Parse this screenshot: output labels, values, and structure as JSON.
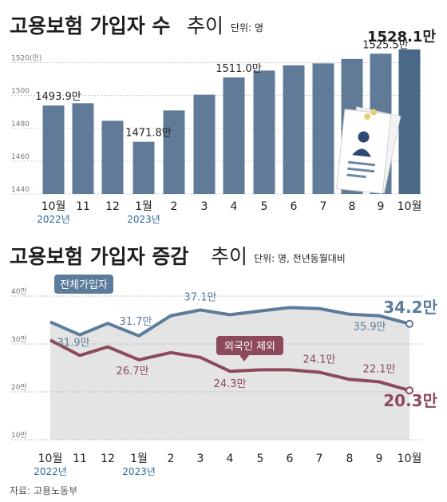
{
  "chart_data": [
    {
      "type": "bar",
      "title": "고용보험 가입자 수",
      "title_suffix": "추이",
      "unit": "단위: 명",
      "ylim": [
        1440,
        1530
      ],
      "y_ticks": [
        "1440",
        "1460",
        "1480",
        "1500",
        "1520(만)"
      ],
      "y_tick_values": [
        1440,
        1460,
        1480,
        1500,
        1520
      ],
      "categories": [
        "10월",
        "11",
        "12",
        "1월",
        "2",
        "3",
        "4",
        "5",
        "6",
        "7",
        "8",
        "9",
        "10월"
      ],
      "year_labels": [
        {
          "index": 0,
          "text": "2022년"
        },
        {
          "index": 3,
          "text": "2023년"
        }
      ],
      "values": [
        1493.9,
        1495.3,
        1484.6,
        1471.8,
        1490.9,
        1500.5,
        1511.0,
        1515.2,
        1518.4,
        1519.6,
        1522.3,
        1525.5,
        1528.1
      ],
      "data_labels": [
        {
          "index": 0,
          "text": "1493.9만"
        },
        {
          "index": 3,
          "text": "1471.8만"
        },
        {
          "index": 6,
          "text": "1511.0만"
        },
        {
          "index": 11,
          "text": "1525.5만"
        },
        {
          "index": 12,
          "text": "1528.1만"
        }
      ],
      "colors": {
        "bar": "#5f7b98",
        "bar_last": "#4a6888",
        "title": "#1d1d1d"
      }
    },
    {
      "type": "line",
      "title": "고용보험 가입자 증감",
      "title_suffix": "추이",
      "unit": "단위: 명, 전년동월대비",
      "ylim": [
        10,
        40
      ],
      "y_ticks": [
        "10만",
        "20만",
        "30만",
        "40만"
      ],
      "y_tick_values": [
        10,
        20,
        30,
        40
      ],
      "categories": [
        "10월",
        "11",
        "12",
        "1월",
        "2",
        "3",
        "4",
        "5",
        "6",
        "7",
        "8",
        "9",
        "10월"
      ],
      "year_labels": [
        {
          "index": 0,
          "text": "2022년"
        },
        {
          "index": 3,
          "text": "2023년"
        }
      ],
      "series": [
        {
          "name": "전체가입자",
          "values": [
            34.6,
            31.9,
            34.3,
            31.7,
            35.9,
            37.1,
            36.1,
            36.9,
            37.6,
            37.4,
            36.2,
            35.9,
            34.2
          ],
          "color": "#5b7c9b",
          "data_labels": [
            {
              "index": 1,
              "text": "31.9만"
            },
            {
              "index": 3,
              "text": "31.7만"
            },
            {
              "index": 5,
              "text": "37.1만"
            },
            {
              "index": 11,
              "text": "35.9만"
            },
            {
              "index": 12,
              "text": "34.2만"
            }
          ]
        },
        {
          "name": "외국인 제외",
          "values": [
            30.8,
            27.6,
            29.4,
            26.7,
            28.2,
            27.2,
            24.3,
            24.6,
            24.6,
            24.1,
            22.6,
            22.1,
            20.3
          ],
          "color": "#8c4a5b",
          "data_labels": [
            {
              "index": 3,
              "text": "26.7만"
            },
            {
              "index": 6,
              "text": "24.3만"
            },
            {
              "index": 9,
              "text": "24.1만"
            },
            {
              "index": 11,
              "text": "22.1만"
            },
            {
              "index": 12,
              "text": "20.3만"
            }
          ]
        }
      ],
      "colors": {
        "area": "#e4e4e4",
        "grid": "#aaaaaa"
      }
    }
  ],
  "source": "자료: 고용노동부"
}
